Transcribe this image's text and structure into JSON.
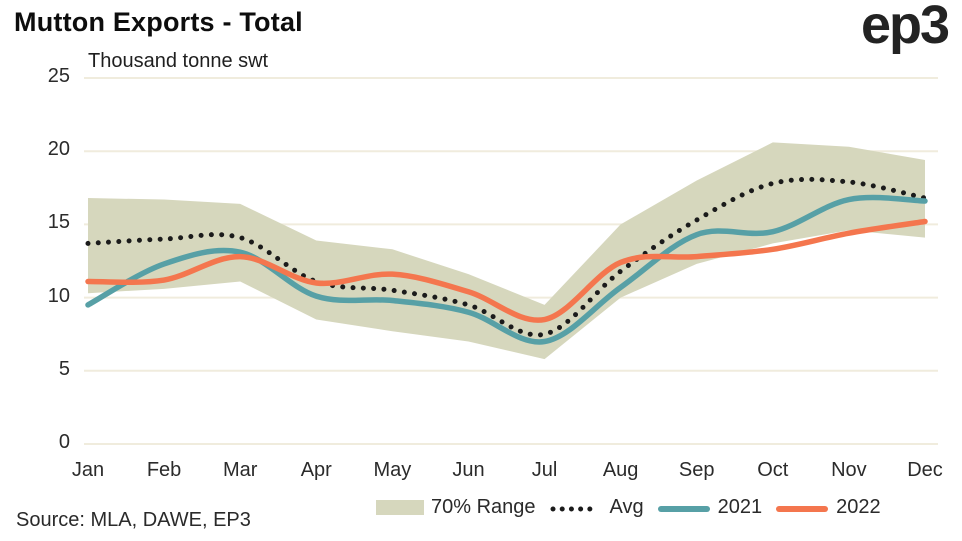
{
  "header": {
    "logo_text": "ep3"
  },
  "chart_data": {
    "type": "line",
    "title": "Mutton Exports - Total",
    "subtitle": "Thousand tonne swt",
    "source": "Source: MLA, DAWE, EP3",
    "categories": [
      "Jan",
      "Feb",
      "Mar",
      "Apr",
      "May",
      "Jun",
      "Jul",
      "Aug",
      "Sep",
      "Oct",
      "Nov",
      "Dec"
    ],
    "y_ticks": [
      0,
      5,
      10,
      15,
      20,
      25
    ],
    "ylim": [
      0,
      25
    ],
    "grid": true,
    "legend_position": "bottom",
    "series": [
      {
        "name": "70% Range",
        "kind": "band",
        "color": "#d6d7bd",
        "upper": [
          16.8,
          16.7,
          16.4,
          13.9,
          13.3,
          11.6,
          9.5,
          15.0,
          18.0,
          20.6,
          20.3,
          19.4
        ],
        "lower": [
          10.3,
          10.6,
          11.1,
          8.5,
          7.7,
          7.0,
          5.8,
          10.0,
          12.3,
          13.7,
          14.6,
          14.1
        ]
      },
      {
        "name": "Avg",
        "kind": "line",
        "style": "dotted",
        "color": "#1b1b1b",
        "values": [
          13.7,
          14.0,
          14.1,
          11.1,
          10.5,
          9.5,
          7.5,
          11.8,
          15.3,
          17.8,
          17.9,
          16.8
        ]
      },
      {
        "name": "2021",
        "kind": "line",
        "style": "solid",
        "color": "#57a0a6",
        "values": [
          9.5,
          12.3,
          13.1,
          10.1,
          9.8,
          9.0,
          7.0,
          10.7,
          14.3,
          14.5,
          16.7,
          16.6
        ]
      },
      {
        "name": "2022",
        "kind": "line",
        "style": "solid",
        "color": "#f4764e",
        "values": [
          11.1,
          11.2,
          12.8,
          11.0,
          11.6,
          10.4,
          8.5,
          12.4,
          12.8,
          13.3,
          14.4,
          15.2
        ]
      }
    ],
    "colors": {
      "grid": "#f0ecdd",
      "axis_text": "#2b2b2b",
      "background": "#ffffff"
    }
  }
}
